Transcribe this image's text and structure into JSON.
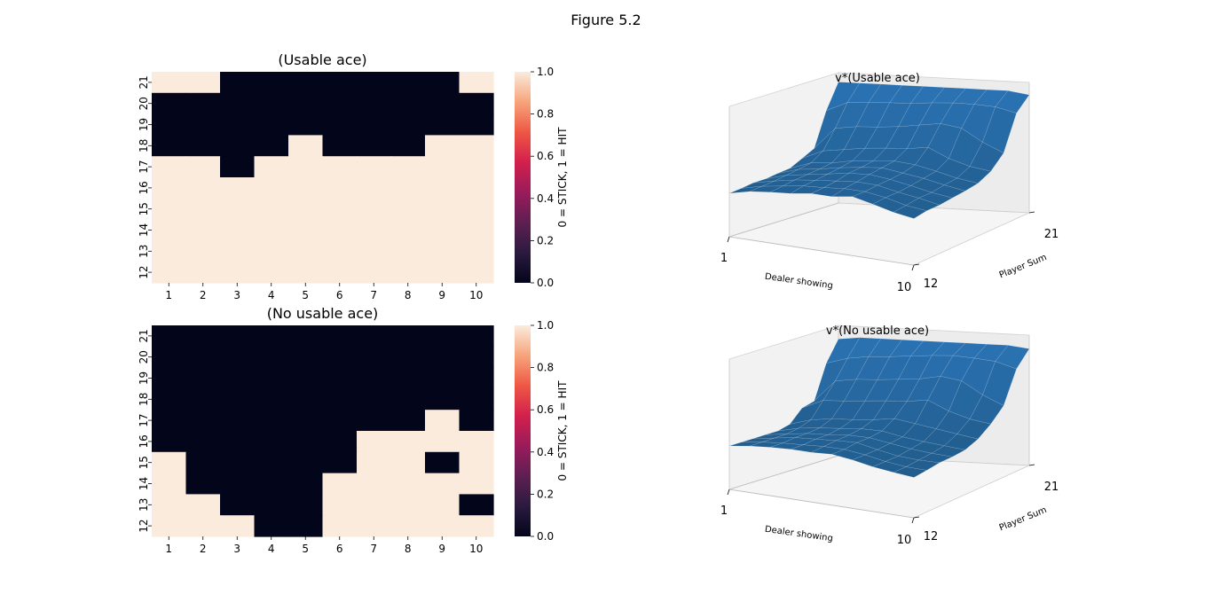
{
  "figure": {
    "title": "Figure 5.2"
  },
  "colors": {
    "stick": "#03051a",
    "hit": "#faebdd",
    "colormap_rocket": [
      "#03051a",
      "#2b1a3f",
      "#5e1f52",
      "#9a1b5b",
      "#d2204c",
      "#ef5744",
      "#f6a47c",
      "#faebdd"
    ],
    "surface": "#2a6496",
    "surface_top": "#2f78b6",
    "pane": "#f2f2f2"
  },
  "chart_data": [
    {
      "type": "heatmap",
      "title": "(Usable ace)",
      "xlabel": "",
      "ylabel": "",
      "x_ticks": [
        "1",
        "2",
        "3",
        "4",
        "5",
        "6",
        "7",
        "8",
        "9",
        "10"
      ],
      "y_ticks": [
        "21",
        "20",
        "19",
        "18",
        "17",
        "16",
        "15",
        "14",
        "13",
        "12"
      ],
      "values": [
        [
          1,
          1,
          0,
          0,
          0,
          0,
          0,
          0,
          0,
          1
        ],
        [
          0,
          0,
          0,
          0,
          0,
          0,
          0,
          0,
          0,
          0
        ],
        [
          0,
          0,
          0,
          0,
          0,
          0,
          0,
          0,
          0,
          0
        ],
        [
          0,
          0,
          0,
          0,
          1,
          0,
          0,
          0,
          1,
          1
        ],
        [
          1,
          1,
          0,
          1,
          1,
          1,
          1,
          1,
          1,
          1
        ],
        [
          1,
          1,
          1,
          1,
          1,
          1,
          1,
          1,
          1,
          1
        ],
        [
          1,
          1,
          1,
          1,
          1,
          1,
          1,
          1,
          1,
          1
        ],
        [
          1,
          1,
          1,
          1,
          1,
          1,
          1,
          1,
          1,
          1
        ],
        [
          1,
          1,
          1,
          1,
          1,
          1,
          1,
          1,
          1,
          1
        ],
        [
          1,
          1,
          1,
          1,
          1,
          1,
          1,
          1,
          1,
          1
        ]
      ],
      "colorbar": {
        "label": "0 = STICK, 1 = HIT",
        "ticks": [
          "0.0",
          "0.2",
          "0.4",
          "0.6",
          "0.8",
          "1.0"
        ],
        "range": [
          0,
          1
        ]
      }
    },
    {
      "type": "heatmap",
      "title": "(No usable ace)",
      "xlabel": "",
      "ylabel": "",
      "x_ticks": [
        "1",
        "2",
        "3",
        "4",
        "5",
        "6",
        "7",
        "8",
        "9",
        "10"
      ],
      "y_ticks": [
        "21",
        "20",
        "19",
        "18",
        "17",
        "16",
        "15",
        "14",
        "13",
        "12"
      ],
      "values": [
        [
          0,
          0,
          0,
          0,
          0,
          0,
          0,
          0,
          0,
          0
        ],
        [
          0,
          0,
          0,
          0,
          0,
          0,
          0,
          0,
          0,
          0
        ],
        [
          0,
          0,
          0,
          0,
          0,
          0,
          0,
          0,
          0,
          0
        ],
        [
          0,
          0,
          0,
          0,
          0,
          0,
          0,
          0,
          0,
          0
        ],
        [
          0,
          0,
          0,
          0,
          0,
          0,
          0,
          0,
          1,
          0
        ],
        [
          0,
          0,
          0,
          0,
          0,
          0,
          1,
          1,
          1,
          1
        ],
        [
          1,
          0,
          0,
          0,
          0,
          0,
          1,
          1,
          0,
          1
        ],
        [
          1,
          0,
          0,
          0,
          0,
          1,
          1,
          1,
          1,
          1
        ],
        [
          1,
          1,
          0,
          0,
          0,
          1,
          1,
          1,
          1,
          0
        ],
        [
          1,
          1,
          1,
          0,
          0,
          1,
          1,
          1,
          1,
          1
        ]
      ],
      "colorbar": {
        "label": "0 = STICK, 1 = HIT",
        "ticks": [
          "0.0",
          "0.2",
          "0.4",
          "0.6",
          "0.8",
          "1.0"
        ],
        "range": [
          0,
          1
        ]
      }
    },
    {
      "type": "surface",
      "title": "v*(Usable ace)",
      "xlabel": "Dealer showing",
      "ylabel": "Player Sum",
      "x_ticks": [
        "1",
        "10"
      ],
      "y_ticks": [
        "12",
        "21"
      ],
      "x": [
        1,
        2,
        3,
        4,
        5,
        6,
        7,
        8,
        9,
        10
      ],
      "y": [
        12,
        13,
        14,
        15,
        16,
        17,
        18,
        19,
        20,
        21
      ],
      "z": [
        [
          -0.3,
          -0.22,
          -0.18,
          -0.15,
          -0.1,
          -0.1,
          -0.05,
          -0.12,
          -0.2,
          -0.25
        ],
        [
          -0.28,
          -0.2,
          -0.15,
          -0.1,
          -0.08,
          -0.05,
          -0.05,
          -0.1,
          -0.18,
          -0.22
        ],
        [
          -0.25,
          -0.18,
          -0.12,
          -0.08,
          -0.05,
          -0.02,
          -0.03,
          -0.1,
          -0.15,
          -0.22
        ],
        [
          -0.25,
          -0.15,
          -0.1,
          -0.05,
          0.0,
          0.02,
          -0.02,
          -0.08,
          -0.15,
          -0.2
        ],
        [
          -0.22,
          -0.12,
          -0.08,
          -0.02,
          0.02,
          0.05,
          0.0,
          -0.05,
          -0.12,
          -0.18
        ],
        [
          -0.2,
          -0.08,
          -0.05,
          0.02,
          0.05,
          0.08,
          0.05,
          -0.02,
          -0.1,
          -0.15
        ],
        [
          -0.1,
          0.05,
          0.1,
          0.15,
          0.18,
          0.2,
          0.25,
          0.1,
          0.0,
          -0.05
        ],
        [
          0.0,
          0.35,
          0.4,
          0.42,
          0.45,
          0.5,
          0.55,
          0.5,
          0.3,
          0.15
        ],
        [
          0.55,
          0.7,
          0.72,
          0.74,
          0.75,
          0.78,
          0.8,
          0.8,
          0.78,
          0.7
        ],
        [
          0.95,
          0.95,
          0.95,
          0.95,
          0.95,
          0.95,
          0.95,
          0.95,
          0.95,
          0.9
        ]
      ]
    },
    {
      "type": "surface",
      "title": "v*(No usable ace)",
      "xlabel": "Dealer showing",
      "ylabel": "Player Sum",
      "x_ticks": [
        "1",
        "10"
      ],
      "y_ticks": [
        "12",
        "21"
      ],
      "x": [
        1,
        2,
        3,
        4,
        5,
        6,
        7,
        8,
        9,
        10
      ],
      "y": [
        12,
        13,
        14,
        15,
        16,
        17,
        18,
        19,
        20,
        21
      ],
      "z": [
        [
          -0.3,
          -0.25,
          -0.22,
          -0.2,
          -0.2,
          -0.18,
          -0.22,
          -0.28,
          -0.32,
          -0.35
        ],
        [
          -0.3,
          -0.25,
          -0.22,
          -0.2,
          -0.18,
          -0.18,
          -0.22,
          -0.28,
          -0.32,
          -0.33
        ],
        [
          -0.3,
          -0.25,
          -0.2,
          -0.18,
          -0.16,
          -0.15,
          -0.22,
          -0.28,
          -0.3,
          -0.3
        ],
        [
          -0.3,
          -0.25,
          -0.2,
          -0.18,
          -0.15,
          -0.15,
          -0.2,
          -0.25,
          -0.28,
          -0.3
        ],
        [
          -0.3,
          -0.22,
          -0.18,
          -0.15,
          -0.12,
          -0.12,
          -0.18,
          -0.22,
          -0.25,
          -0.28
        ],
        [
          -0.25,
          -0.15,
          -0.1,
          -0.08,
          -0.05,
          0.0,
          -0.05,
          -0.1,
          -0.15,
          -0.2
        ],
        [
          -0.05,
          0.1,
          0.12,
          0.15,
          0.18,
          0.2,
          0.25,
          0.1,
          0.0,
          -0.05
        ],
        [
          0.0,
          0.35,
          0.4,
          0.42,
          0.45,
          0.48,
          0.55,
          0.5,
          0.3,
          0.15
        ],
        [
          0.55,
          0.65,
          0.7,
          0.72,
          0.75,
          0.78,
          0.8,
          0.78,
          0.75,
          0.65
        ],
        [
          0.88,
          0.92,
          0.92,
          0.92,
          0.92,
          0.92,
          0.92,
          0.92,
          0.92,
          0.88
        ]
      ]
    }
  ]
}
